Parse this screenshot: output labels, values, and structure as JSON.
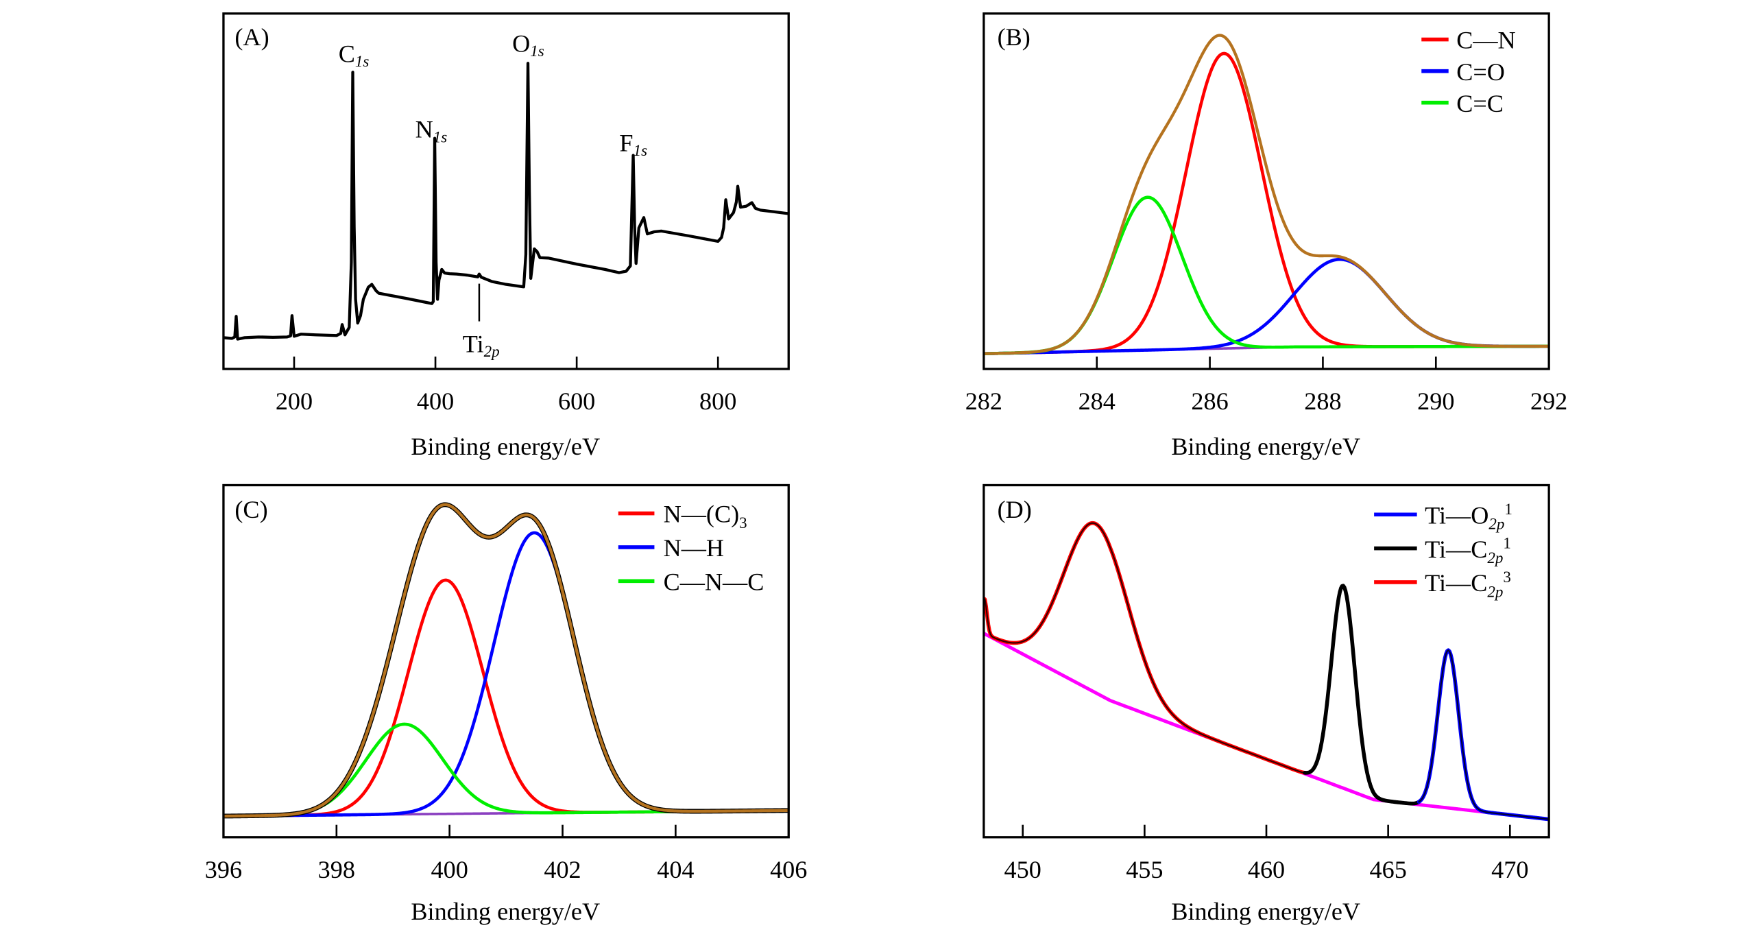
{
  "chart_data": [
    {
      "type": "line",
      "panel_label": "(A)",
      "xlabel": "Binding energy/eV",
      "ylabel": "",
      "xlim": [
        100,
        900
      ],
      "ylim": [
        0,
        100
      ],
      "xticks": [
        200,
        400,
        600,
        800
      ],
      "grid": false,
      "series": [
        {
          "color": "#000000",
          "points": [
            [
              100,
              8.8
            ],
            [
              112,
              8.6
            ],
            [
              116,
              9.0
            ],
            [
              118,
              14.8
            ],
            [
              120,
              8.4
            ],
            [
              130,
              8.8
            ],
            [
              150,
              9.0
            ],
            [
              170,
              8.9
            ],
            [
              190,
              9.0
            ],
            [
              195,
              9.3
            ],
            [
              197,
              15.0
            ],
            [
              200,
              9.2
            ],
            [
              210,
              9.8
            ],
            [
              230,
              9.6
            ],
            [
              260,
              9.4
            ],
            [
              266,
              10.0
            ],
            [
              268,
              12.5
            ],
            [
              272,
              9.6
            ],
            [
              278,
              11.7
            ],
            [
              281,
              30
            ],
            [
              283,
              83.5
            ],
            [
              285,
              40
            ],
            [
              287,
              19.6
            ],
            [
              290,
              12.9
            ],
            [
              294,
              15
            ],
            [
              298,
              19.6
            ],
            [
              305,
              23
            ],
            [
              310,
              23.8
            ],
            [
              316,
              22
            ],
            [
              320,
              21.3
            ],
            [
              360,
              19.8
            ],
            [
              395,
              18.4
            ],
            [
              397,
              19
            ],
            [
              399,
              64.9
            ],
            [
              401,
              30
            ],
            [
              403,
              19.6
            ],
            [
              405,
              25
            ],
            [
              409,
              28
            ],
            [
              413,
              27
            ],
            [
              420,
              26.8
            ],
            [
              430,
              26.7
            ],
            [
              445,
              26.4
            ],
            [
              460,
              25.9
            ],
            [
              462,
              26.7
            ],
            [
              465,
              25.8
            ],
            [
              480,
              24.6
            ],
            [
              500,
              23.8
            ],
            [
              525,
              23.1
            ],
            [
              528,
              32.2
            ],
            [
              531,
              86.0
            ],
            [
              533,
              50
            ],
            [
              535,
              25.5
            ],
            [
              540,
              33.8
            ],
            [
              544,
              33
            ],
            [
              548,
              31.3
            ],
            [
              560,
              31.2
            ],
            [
              600,
              29.5
            ],
            [
              640,
              28
            ],
            [
              660,
              27.1
            ],
            [
              670,
              27.5
            ],
            [
              676,
              29
            ],
            [
              680,
              60.1
            ],
            [
              682,
              40
            ],
            [
              684,
              29.7
            ],
            [
              688,
              39.7
            ],
            [
              695,
              42.6
            ],
            [
              700,
              38
            ],
            [
              710,
              38.6
            ],
            [
              720,
              38.8
            ],
            [
              760,
              37.4
            ],
            [
              800,
              35.9
            ],
            [
              805,
              37
            ],
            [
              808,
              39.7
            ],
            [
              811,
              47.6
            ],
            [
              815,
              42.2
            ],
            [
              822,
              44
            ],
            [
              826,
              47
            ],
            [
              828,
              51.4
            ],
            [
              832,
              45.5
            ],
            [
              840,
              45.8
            ],
            [
              848,
              46.8
            ],
            [
              853,
              45.2
            ],
            [
              860,
              44.7
            ],
            [
              880,
              44.2
            ],
            [
              900,
              43.7
            ]
          ]
        }
      ],
      "annotations": [
        {
          "text": "C",
          "sub": "1s",
          "x": 283
        },
        {
          "text": "N",
          "sub": "1s",
          "x": 399
        },
        {
          "text": "O",
          "sub": "1s",
          "x": 531
        },
        {
          "text": "F",
          "sub": "1s",
          "x": 680
        },
        {
          "text": "Ti",
          "sub": "2p",
          "x": 462,
          "marker_y": [
            13.4,
            24
          ]
        }
      ]
    },
    {
      "type": "line",
      "panel_label": "(B)",
      "xlabel": "Binding energy/eV",
      "ylabel": "",
      "xlim": [
        282,
        292
      ],
      "ylim": [
        0,
        100
      ],
      "xticks": [
        282,
        284,
        286,
        288,
        290,
        292
      ],
      "grid": false,
      "legend_position": "top-right",
      "envelope_color": "#b5731f",
      "baseline_color": "#8a3fc0",
      "baseline": [
        [
          282,
          4.3
        ],
        [
          287.5,
          6.2
        ],
        [
          292,
          6.4
        ]
      ],
      "components": [
        {
          "name": "C—N",
          "sub": "",
          "sup": "",
          "color": "#ff0000",
          "center": 286.25,
          "fwhm": 1.57,
          "height": 83
        },
        {
          "name": "C=O",
          "sub": "",
          "sup": "",
          "color": "#0000ff",
          "center": 288.3,
          "fwhm": 1.9,
          "height": 24.6
        },
        {
          "name": "C=C",
          "sub": "",
          "sup": "",
          "color": "#00ee00",
          "center": 284.9,
          "fwhm": 1.44,
          "height": 43
        }
      ]
    },
    {
      "type": "line",
      "panel_label": "(C)",
      "xlabel": "Binding energy/eV",
      "ylabel": "",
      "xlim": [
        396,
        406
      ],
      "ylim": [
        0,
        100
      ],
      "xticks": [
        396,
        398,
        400,
        402,
        404,
        406
      ],
      "grid": false,
      "legend_position": "top-right",
      "envelope_color": "#b5731f",
      "raw_color": "#000000",
      "baseline_color": "#8a3fc0",
      "baseline": [
        [
          396,
          6.0
        ],
        [
          406,
          7.6
        ]
      ],
      "components": [
        {
          "name": "N—(C)",
          "sub": "3",
          "sup": "",
          "color": "#ff0000",
          "center": 399.93,
          "fwhm": 1.56,
          "height": 66.4
        },
        {
          "name": "N—H",
          "sub": "",
          "sup": "",
          "color": "#0000ff",
          "center": 401.5,
          "fwhm": 1.68,
          "height": 79.6
        },
        {
          "name": "C—N—C",
          "sub": "",
          "sup": "",
          "color": "#00ee00",
          "center": 399.2,
          "fwhm": 1.6,
          "height": 25.6
        }
      ]
    },
    {
      "type": "line",
      "panel_label": "(D)",
      "xlabel": "Binding energy/eV",
      "ylabel": "",
      "xlim": [
        448.4,
        471.6
      ],
      "ylim": [
        0,
        100
      ],
      "xticks": [
        450,
        455,
        460,
        465,
        470
      ],
      "grid": false,
      "legend_position": "top-right",
      "baseline_color": "#ff00ff",
      "baseline": [
        [
          448.4,
          57.9
        ],
        [
          453.6,
          38.8
        ],
        [
          464.4,
          10.7
        ],
        [
          471.6,
          5.1
        ]
      ],
      "edge": {
        "center": 448.42,
        "fwhm": 0.25,
        "height": 10
      },
      "components": [
        {
          "name": "Ti—O",
          "sub": "2p",
          "sup": "1",
          "color": "#0000ff",
          "center": 467.47,
          "fwhm": 1.0,
          "height": 44.8
        },
        {
          "name": "Ti—C",
          "sub": "2p",
          "sup": "1",
          "color": "#000000",
          "center": 463.15,
          "fwhm": 1.13,
          "height": 57.5
        },
        {
          "name": "Ti—C",
          "sub": "2p",
          "sup": "3",
          "color": "#ff0000",
          "center": 453.0,
          "fwhm": 3.1,
          "height": 48
        }
      ]
    }
  ]
}
